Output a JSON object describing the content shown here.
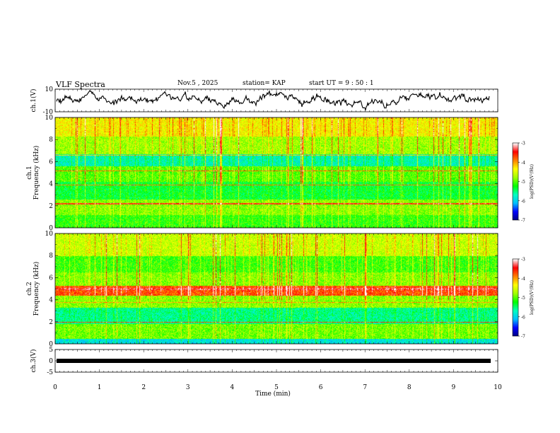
{
  "header": {
    "title": "VLF Spectra",
    "date": "Nov.5 , 2025",
    "station_label": "station= KAP",
    "start_label": "start UT =  9 : 50 : 1"
  },
  "colors": {
    "colormap": [
      "#000080",
      "#0000ff",
      "#00bfff",
      "#00ffc0",
      "#00ff00",
      "#a0ff00",
      "#ffff00",
      "#ff8000",
      "#ff0000",
      "#ffffff"
    ],
    "trace": "#000000"
  },
  "chart_data": [
    {
      "type": "line",
      "panel": "ch1-waveform",
      "ylabel": "ch.1(V)",
      "ylim": [
        -10,
        10
      ],
      "yticks": [
        "10",
        "-10"
      ],
      "xlim": [
        0,
        10
      ]
    },
    {
      "type": "heatmap",
      "panel": "ch1-spectrogram",
      "ylabel": "Frequency (kHz)",
      "channel_label": "ch.1",
      "ylim": [
        0,
        10
      ],
      "yticks": [
        "0",
        "2",
        "4",
        "6",
        "8",
        "10"
      ],
      "xlim": [
        0,
        10
      ],
      "colorbar": {
        "label": "log(PSD)(V²/Hz)",
        "ticks": [
          "-3",
          "-4",
          "-5",
          "-6",
          "-7"
        ],
        "range": [
          -7,
          -3
        ]
      }
    },
    {
      "type": "heatmap",
      "panel": "ch2-spectrogram",
      "ylabel": "Frequency (kHz)",
      "channel_label": "ch.2",
      "ylim": [
        0,
        10
      ],
      "yticks": [
        "0",
        "2",
        "4",
        "6",
        "8",
        "10"
      ],
      "xlim": [
        0,
        10
      ],
      "colorbar": {
        "label": "log(PSD)(V²/Hz)",
        "ticks": [
          "-3",
          "-4",
          "-5",
          "-6",
          "-7"
        ],
        "range": [
          -7,
          -3
        ]
      }
    },
    {
      "type": "line",
      "panel": "ch3-waveform",
      "ylabel": "ch.3(V)",
      "ylim": [
        -5,
        5
      ],
      "yticks": [
        "5",
        "0",
        "-5"
      ],
      "xlim": [
        0,
        10
      ],
      "xlabel": "Time (min)",
      "xticks": [
        "0",
        "1",
        "2",
        "3",
        "4",
        "5",
        "6",
        "7",
        "8",
        "9",
        "10"
      ]
    }
  ]
}
